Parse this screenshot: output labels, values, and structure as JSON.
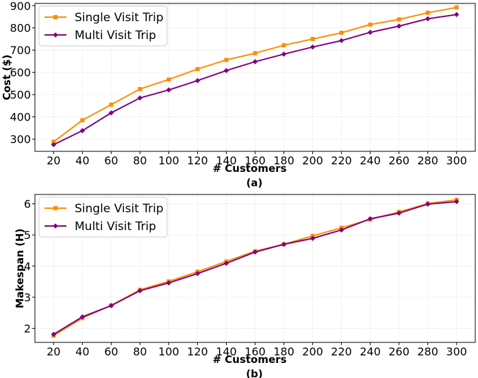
{
  "chart_data": [
    {
      "type": "line",
      "caption": "(a)",
      "xlabel": "# Customers",
      "ylabel": "Cost ($)",
      "x": [
        20,
        40,
        60,
        80,
        100,
        120,
        140,
        160,
        180,
        200,
        220,
        240,
        260,
        280,
        300
      ],
      "xlim": [
        7,
        313
      ],
      "ylim": [
        245,
        910
      ],
      "yticks": [
        300,
        400,
        500,
        600,
        700,
        800,
        900
      ],
      "grid": true,
      "legend": "top-left",
      "series": [
        {
          "name": "Single Visit Trip",
          "color": "#FF8C00",
          "marker": "square",
          "values": [
            288,
            385,
            455,
            525,
            568,
            615,
            656,
            686,
            722,
            750,
            778,
            815,
            838,
            868,
            892
          ]
        },
        {
          "name": "Multi Visit Trip",
          "color": "#800080",
          "marker": "diamond",
          "values": [
            275,
            338,
            418,
            485,
            521,
            563,
            608,
            648,
            682,
            714,
            743,
            780,
            808,
            841,
            860
          ]
        }
      ]
    },
    {
      "type": "line",
      "caption": "(b)",
      "xlabel": "# Customers",
      "ylabel": "Makespan (H)",
      "x": [
        20,
        40,
        60,
        80,
        100,
        120,
        140,
        160,
        180,
        200,
        220,
        240,
        260,
        280,
        300
      ],
      "xlim": [
        7,
        313
      ],
      "ylim": [
        1.55,
        6.3
      ],
      "yticks": [
        2,
        3,
        4,
        5,
        6
      ],
      "grid": true,
      "legend": "top-left",
      "series": [
        {
          "name": "Single Visit Trip",
          "color": "#FF8C00",
          "marker": "square",
          "values": [
            1.77,
            2.33,
            2.74,
            3.24,
            3.51,
            3.82,
            4.15,
            4.48,
            4.7,
            4.97,
            5.23,
            5.5,
            5.74,
            6.01,
            6.13
          ]
        },
        {
          "name": "Multi Visit Trip",
          "color": "#800080",
          "marker": "diamond",
          "values": [
            1.81,
            2.37,
            2.73,
            3.21,
            3.46,
            3.76,
            4.09,
            4.45,
            4.7,
            4.89,
            5.16,
            5.52,
            5.7,
            5.99,
            6.07
          ]
        }
      ]
    }
  ]
}
